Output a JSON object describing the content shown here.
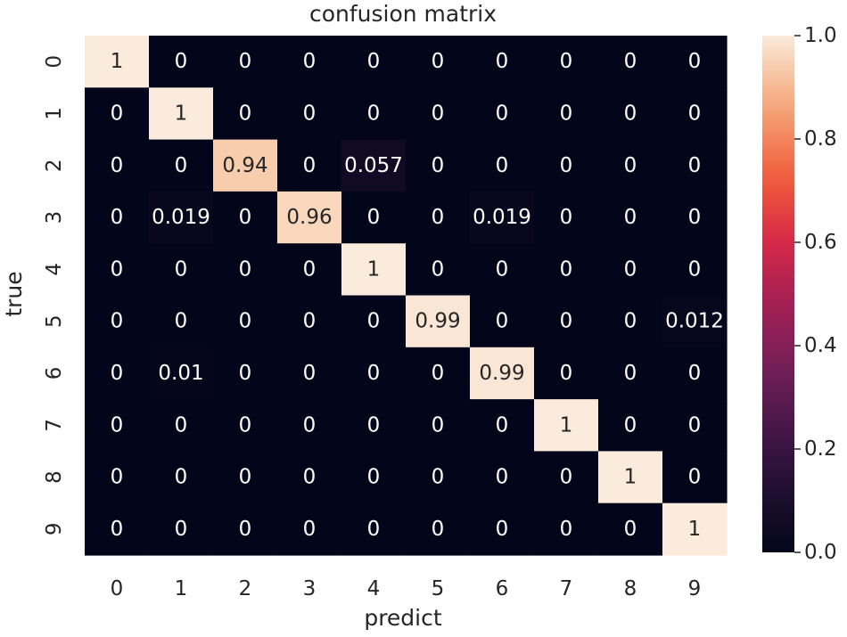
{
  "chart_data": {
    "type": "heatmap",
    "title": "confusion matrix",
    "xlabel": "predict",
    "ylabel": "true",
    "x_categories": [
      "0",
      "1",
      "2",
      "3",
      "4",
      "5",
      "6",
      "7",
      "8",
      "9"
    ],
    "y_categories": [
      "0",
      "1",
      "2",
      "3",
      "4",
      "5",
      "6",
      "7",
      "8",
      "9"
    ],
    "values": [
      [
        1,
        0,
        0,
        0,
        0,
        0,
        0,
        0,
        0,
        0
      ],
      [
        0,
        1,
        0,
        0,
        0,
        0,
        0,
        0,
        0,
        0
      ],
      [
        0,
        0,
        0.94,
        0,
        0.057,
        0,
        0,
        0,
        0,
        0
      ],
      [
        0,
        0.019,
        0,
        0.96,
        0,
        0,
        0.019,
        0,
        0,
        0
      ],
      [
        0,
        0,
        0,
        0,
        1,
        0,
        0,
        0,
        0,
        0
      ],
      [
        0,
        0,
        0,
        0,
        0,
        0.99,
        0,
        0,
        0,
        0.012
      ],
      [
        0,
        0.01,
        0,
        0,
        0,
        0,
        0.99,
        0,
        0,
        0
      ],
      [
        0,
        0,
        0,
        0,
        0,
        0,
        0,
        1,
        0,
        0
      ],
      [
        0,
        0,
        0,
        0,
        0,
        0,
        0,
        0,
        1,
        0
      ],
      [
        0,
        0,
        0,
        0,
        0,
        0,
        0,
        0,
        0,
        1
      ]
    ],
    "vmin": 0,
    "vmax": 1,
    "colorbar_ticks": [
      "0.0",
      "0.2",
      "0.4",
      "0.6",
      "0.8",
      "1.0"
    ],
    "colorscale": "rocket",
    "annotations": true,
    "grid": false,
    "legend": "colorbar-right"
  }
}
